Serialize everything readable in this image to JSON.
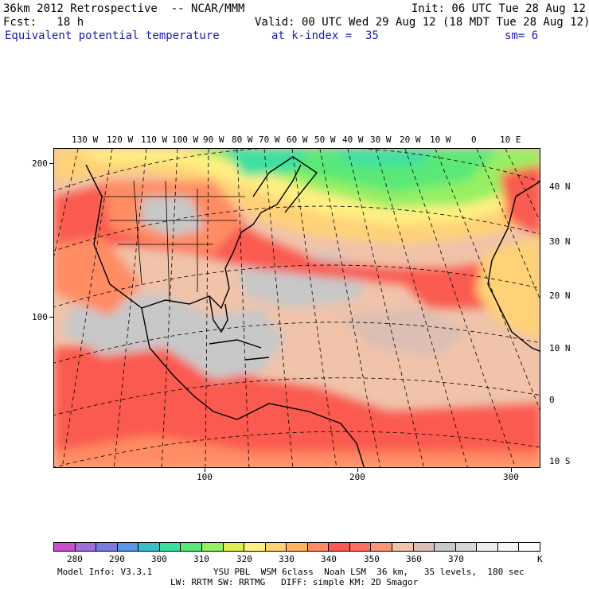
{
  "header": {
    "line1_left": "36km 2012 Retrospective  -- NCAR/MMM",
    "line1_right": "Init: 06 UTC Tue 28 Aug 12",
    "line2_left": "Fcst:   18 h",
    "line2_right": "Valid: 00 UTC Wed 29 Aug 12 (18 MDT Tue 28 Aug 12)",
    "line3_field": "Equivalent potential temperature",
    "line3_level": "at k-index =  35",
    "line3_smooth": "sm= 6"
  },
  "map": {
    "top_lon_labels": [
      "130 W",
      "120 W",
      "110 W",
      "100 W",
      "90 W",
      "80 W",
      "70 W",
      "60 W",
      "50 W",
      "40 W",
      "30 W",
      "20 W",
      "10 W",
      "0",
      "10 E"
    ],
    "right_lat_labels": [
      "40 N",
      "30 N",
      "20 N",
      "10 N",
      "0",
      "10 S"
    ],
    "left_y_labels": [
      "200",
      "100"
    ],
    "bottom_x_labels": [
      "100",
      "200",
      "300"
    ]
  },
  "colorbar": {
    "colors": [
      "#c850c8",
      "#a070d8",
      "#7c7ce0",
      "#5a96e6",
      "#3cbec8",
      "#3ce0a0",
      "#5ae878",
      "#96f064",
      "#dcf050",
      "#fff082",
      "#ffd278",
      "#ffb464",
      "#ff8c64",
      "#fa5a50",
      "#ff6e64",
      "#fa9678",
      "#f0c3aa",
      "#dcbeb4",
      "#c8c8c8",
      "#d7d7d7",
      "#eeeeee",
      "#f7f7f7",
      "#ffffff"
    ],
    "labels": [
      "280",
      "290",
      "300",
      "310",
      "320",
      "330",
      "340",
      "350",
      "360",
      "370"
    ],
    "unit": "K"
  },
  "footer": {
    "line1_left": "Model Info: V3.3.1",
    "line1_right": "YSU PBL  WSM 6class  Noah LSM  36 km,   35 levels,  180 sec",
    "line2": "LW: RRTM SW: RRTMG   DIFF: simple KM: 2D Smagor"
  },
  "legend_colors": {
    "ocean_warm": "#fa5a50",
    "land_pink": "#ff8c64",
    "tropics_grey": "#c8c8c8",
    "tropics_tan": "#f0c3aa",
    "north_green": "#5ae878",
    "north_yellow": "#fff082",
    "north_cyan": "#3ce0a0",
    "header_blue": "#1a1ab0"
  }
}
